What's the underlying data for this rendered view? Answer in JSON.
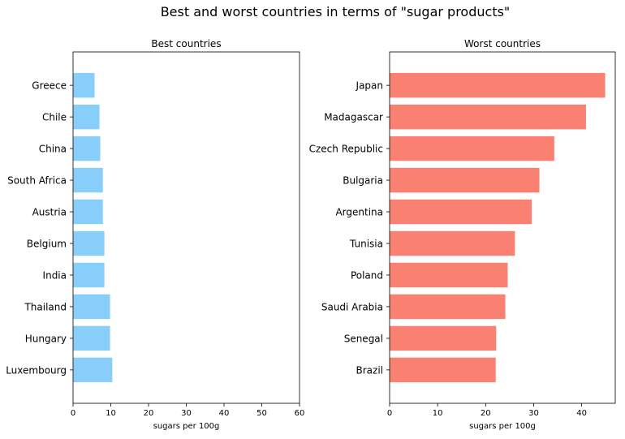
{
  "suptitle": "Best and worst countries in terms of \"sugar products\"",
  "chart_data": [
    {
      "type": "bar",
      "orientation": "horizontal",
      "title": "Best countries",
      "xlabel": "sugars per 100g",
      "ylabel": "",
      "xlim": [
        0,
        60
      ],
      "xticks": [
        0,
        10,
        20,
        30,
        40,
        50,
        60
      ],
      "categories": [
        "Greece",
        "Chile",
        "China",
        "South Africa",
        "Austria",
        "Belgium",
        "India",
        "Thailand",
        "Hungary",
        "Luxembourg"
      ],
      "values": [
        5.7,
        7.0,
        7.2,
        7.9,
        7.9,
        8.3,
        8.3,
        9.8,
        9.8,
        10.4
      ],
      "color": "#87cefa",
      "grid": false,
      "legend": "none"
    },
    {
      "type": "bar",
      "orientation": "horizontal",
      "title": "Worst countries",
      "xlabel": "sugars per 100g",
      "ylabel": "",
      "xlim": [
        0,
        47
      ],
      "xticks": [
        0,
        10,
        20,
        30,
        40
      ],
      "categories": [
        "Japan",
        "Madagascar",
        "Czech Republic",
        "Bulgaria",
        "Argentina",
        "Tunisia",
        "Poland",
        "Saudi Arabia",
        "Senegal",
        "Brazil"
      ],
      "values": [
        44.9,
        40.9,
        34.3,
        31.2,
        29.6,
        26.1,
        24.6,
        24.1,
        22.2,
        22.1
      ],
      "color": "#fa8072",
      "grid": false,
      "legend": "none"
    }
  ]
}
